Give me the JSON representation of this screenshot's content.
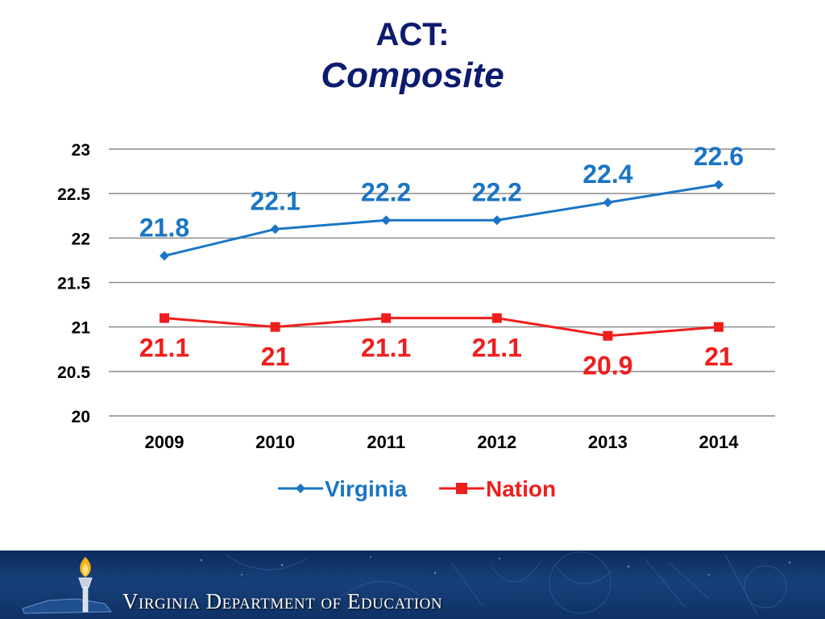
{
  "slide": {
    "title_line1": "ACT:",
    "title_line2": "Composite"
  },
  "chart_data": {
    "type": "line",
    "categories": [
      "2009",
      "2010",
      "2011",
      "2012",
      "2013",
      "2014"
    ],
    "series": [
      {
        "name": "Virginia",
        "values": [
          21.8,
          22.1,
          22.2,
          22.2,
          22.4,
          22.6
        ],
        "value_labels": [
          "21.8",
          "22.1",
          "22.2",
          "22.2",
          "22.4",
          "22.6"
        ],
        "color": "#1b75c4",
        "marker": "diamond"
      },
      {
        "name": "Nation",
        "values": [
          21.1,
          21.0,
          21.1,
          21.1,
          20.9,
          21.0
        ],
        "value_labels": [
          "21.1",
          "21",
          "21.1",
          "21.1",
          "20.9",
          "21"
        ],
        "color": "#f01d1d",
        "marker": "square"
      }
    ],
    "yticks": [
      "20",
      "20.5",
      "21",
      "21.5",
      "22",
      "22.5",
      "23"
    ],
    "ylim": [
      20,
      23
    ],
    "grid": true,
    "legend_position": "bottom",
    "title": "",
    "xlabel": "",
    "ylabel": ""
  },
  "footer": {
    "org_name": "Virginia Department of Education",
    "logo_icon": "torch-and-virginia-map-icon"
  }
}
